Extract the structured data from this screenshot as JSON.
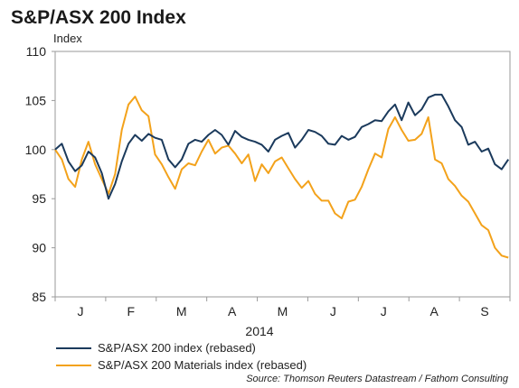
{
  "chart_data": {
    "type": "line",
    "title": "S&P/ASX 200 Index",
    "ylabel": "Index",
    "xlabel": "2014",
    "ylim": [
      85,
      110
    ],
    "yticks": [
      85,
      90,
      95,
      100,
      105,
      110
    ],
    "months": [
      "J",
      "F",
      "M",
      "A",
      "M",
      "J",
      "J",
      "A",
      "S"
    ],
    "grid": false,
    "legend_position": "bottom-left",
    "source": "Source: Thomson Reuters Datastream / Fathom Consulting",
    "x": [
      "2014-01-01",
      "2014-01-05",
      "2014-01-09",
      "2014-01-13",
      "2014-01-17",
      "2014-01-21",
      "2014-01-25",
      "2014-01-29",
      "2014-02-02",
      "2014-02-06",
      "2014-02-10",
      "2014-02-14",
      "2014-02-18",
      "2014-02-22",
      "2014-02-26",
      "2014-03-02",
      "2014-03-06",
      "2014-03-10",
      "2014-03-14",
      "2014-03-18",
      "2014-03-22",
      "2014-03-26",
      "2014-03-30",
      "2014-04-03",
      "2014-04-07",
      "2014-04-11",
      "2014-04-15",
      "2014-04-19",
      "2014-04-23",
      "2014-04-27",
      "2014-05-01",
      "2014-05-05",
      "2014-05-09",
      "2014-05-13",
      "2014-05-17",
      "2014-05-21",
      "2014-05-25",
      "2014-05-29",
      "2014-06-02",
      "2014-06-06",
      "2014-06-10",
      "2014-06-14",
      "2014-06-18",
      "2014-06-22",
      "2014-06-26",
      "2014-06-30",
      "2014-07-04",
      "2014-07-08",
      "2014-07-12",
      "2014-07-16",
      "2014-07-20",
      "2014-07-24",
      "2014-07-28",
      "2014-08-01",
      "2014-08-05",
      "2014-08-09",
      "2014-08-13",
      "2014-08-17",
      "2014-08-21",
      "2014-08-25",
      "2014-08-29",
      "2014-09-02",
      "2014-09-06",
      "2014-09-10",
      "2014-09-14",
      "2014-09-18",
      "2014-09-22",
      "2014-09-26",
      "2014-09-30"
    ],
    "series": [
      {
        "name": "S&P/ASX 200 index (rebased)",
        "color": "#1b3a5c",
        "values": [
          100.0,
          100.6,
          98.8,
          97.8,
          98.4,
          99.8,
          99.2,
          97.6,
          95.0,
          96.5,
          98.8,
          100.6,
          101.5,
          100.9,
          101.6,
          101.2,
          101.0,
          99.0,
          98.2,
          99.0,
          100.6,
          101.0,
          100.8,
          101.5,
          102.0,
          101.5,
          100.5,
          101.9,
          101.3,
          101.0,
          100.8,
          100.5,
          99.8,
          101.0,
          101.4,
          101.7,
          100.2,
          101.0,
          102.0,
          101.8,
          101.4,
          100.6,
          100.5,
          101.4,
          101.0,
          101.3,
          102.3,
          102.6,
          103.0,
          102.9,
          103.9,
          104.6,
          103.0,
          104.8,
          103.5,
          104.1,
          105.3,
          105.6,
          105.6,
          104.4,
          103.0,
          102.3,
          100.5,
          100.8,
          99.8,
          100.1,
          98.5,
          98.0,
          99.0
        ]
      },
      {
        "name": "S&P/ASX 200 Materials index (rebased)",
        "color": "#f3a21b",
        "values": [
          100.0,
          99.0,
          97.0,
          96.2,
          99.0,
          100.8,
          98.5,
          97.0,
          95.5,
          97.5,
          102.0,
          104.6,
          105.4,
          104.0,
          103.4,
          99.5,
          98.5,
          97.2,
          96.0,
          98.0,
          98.6,
          98.4,
          99.8,
          101.0,
          99.6,
          100.2,
          100.4,
          99.6,
          98.6,
          99.5,
          96.8,
          98.5,
          97.6,
          98.8,
          99.2,
          98.1,
          97.0,
          96.1,
          96.8,
          95.5,
          94.8,
          94.8,
          93.5,
          93.0,
          94.7,
          94.9,
          96.2,
          98.0,
          99.6,
          99.2,
          102.1,
          103.3,
          102.0,
          100.9,
          101.0,
          101.6,
          103.3,
          99.0,
          98.6,
          97.0,
          96.3,
          95.3,
          94.7,
          93.5,
          92.3,
          91.8,
          90.0,
          89.2,
          89.0
        ]
      }
    ]
  }
}
